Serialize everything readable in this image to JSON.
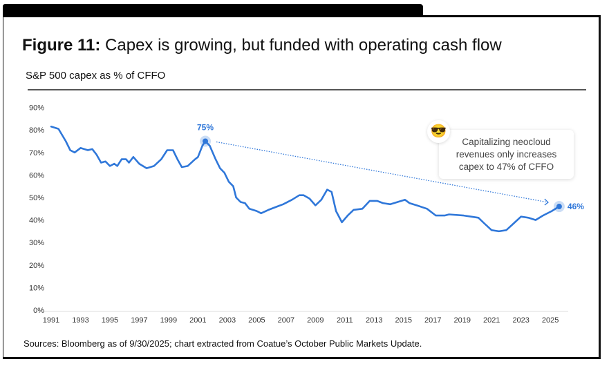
{
  "figure": {
    "label": "Figure 11:",
    "title": "Capex is growing, but funded with operating cash flow",
    "subtitle": "S&P 500 capex as % of CFFO",
    "source": "Sources: Bloomberg as of 9/30/2025; chart extracted from Coatue’s October Public Markets Update."
  },
  "chart_data": {
    "type": "line",
    "title": "S&P 500 capex as % of CFFO",
    "xlabel": "",
    "ylabel": "",
    "xlim": [
      1991,
      2026.5
    ],
    "ylim": [
      0,
      90
    ],
    "y_ticks": [
      "0%",
      "10%",
      "20%",
      "30%",
      "40%",
      "50%",
      "60%",
      "70%",
      "80%",
      "90%"
    ],
    "x_ticks": [
      "1991",
      "1993",
      "1995",
      "1997",
      "1999",
      "2001",
      "2003",
      "2005",
      "2007",
      "2009",
      "2011",
      "2013",
      "2015",
      "2017",
      "2019",
      "2021",
      "2023",
      "2025"
    ],
    "color": "#2f77d9",
    "series": [
      {
        "name": "Capex as % of CFFO",
        "x": [
          1991.0,
          1991.5,
          1992.0,
          1992.3,
          1992.6,
          1993.0,
          1993.5,
          1993.8,
          1994.1,
          1994.4,
          1994.7,
          1995.0,
          1995.3,
          1995.5,
          1995.8,
          1996.1,
          1996.3,
          1996.6,
          1997.0,
          1997.5,
          1998.0,
          1998.5,
          1998.9,
          1999.3,
          1999.6,
          1999.9,
          2000.3,
          2000.8,
          2001.0,
          2001.3,
          2001.5,
          2001.8,
          2002.2,
          2002.5,
          2002.8,
          2003.1,
          2003.4,
          2003.6,
          2003.9,
          2004.2,
          2004.5,
          2005.0,
          2005.3,
          2005.8,
          2006.4,
          2006.8,
          2007.4,
          2007.9,
          2008.2,
          2008.6,
          2009.0,
          2009.4,
          2009.8,
          2010.1,
          2010.4,
          2010.8,
          2011.2,
          2011.6,
          2012.2,
          2012.7,
          2013.2,
          2013.6,
          2014.1,
          2014.6,
          2015.1,
          2015.4,
          2015.9,
          2016.6,
          2017.2,
          2017.8,
          2018.1,
          2019.1,
          2019.6,
          2020.1,
          2020.5,
          2021.0,
          2021.5,
          2022.0,
          2022.5,
          2023.0,
          2023.5,
          2024.0,
          2024.5,
          2025.1,
          2025.6
        ],
        "values": [
          81.5,
          80.5,
          75,
          71,
          70,
          72,
          71,
          71.5,
          69,
          65.5,
          66,
          64,
          65,
          64,
          67,
          67,
          65.5,
          68,
          65,
          63,
          64,
          67,
          71,
          71,
          67,
          63.5,
          64,
          67,
          68,
          73,
          75,
          73,
          67,
          63,
          61,
          57,
          55,
          50,
          48,
          47.5,
          45,
          44,
          43,
          44.5,
          46,
          47,
          49,
          51,
          51,
          49.5,
          46.5,
          49,
          53.5,
          52.5,
          44,
          39,
          42,
          44.5,
          45,
          48.5,
          48.5,
          47.5,
          47,
          48,
          49,
          47.5,
          46.5,
          45,
          42,
          42,
          42.5,
          42,
          41.5,
          41,
          38.5,
          35.5,
          35,
          35.5,
          38.5,
          41.5,
          41,
          40,
          42,
          44,
          46
        ]
      }
    ],
    "annotations": [
      {
        "label": "75%",
        "x": 2001.5,
        "y": 75
      },
      {
        "label": "46%",
        "x": 2025.6,
        "y": 46
      },
      {
        "type": "callout",
        "icon": "sunglasses-emoji",
        "emoji": "😎",
        "text": [
          "Capitalizing neocloud",
          "revenues only increases",
          "capex to 47% of CFFO"
        ]
      }
    ],
    "grid": false,
    "legend": "none"
  }
}
